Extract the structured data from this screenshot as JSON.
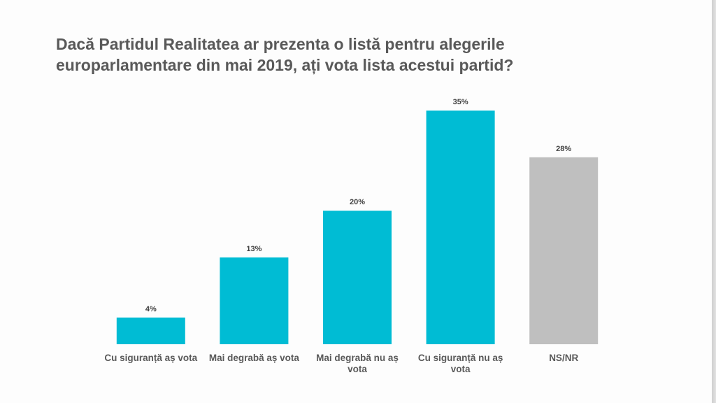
{
  "chart_data": {
    "type": "bar",
    "title_lines": [
      "Dacă Partidul Realitatea ar prezenta o listă pentru alegerile",
      "europarlamentare din mai 2019, ați vota lista acestui partid?"
    ],
    "xlabel": "",
    "ylabel": "",
    "ylim": [
      0,
      35
    ],
    "grid": false,
    "legend": "none",
    "unit": "%",
    "categories": [
      [
        "Cu siguranță aș vota"
      ],
      [
        "Mai degrabă aș vota"
      ],
      [
        "Mai degrabă nu aș",
        "vota"
      ],
      [
        "Cu siguranță nu aș",
        "vota"
      ],
      [
        "NS/NR"
      ]
    ],
    "values": [
      4,
      13,
      20,
      35,
      28
    ],
    "value_labels": [
      "4%",
      "13%",
      "20%",
      "35%",
      "28%"
    ],
    "colors": [
      "#00bcd4",
      "#00bcd4",
      "#00bcd4",
      "#00bcd4",
      "#bfbfbf"
    ]
  }
}
